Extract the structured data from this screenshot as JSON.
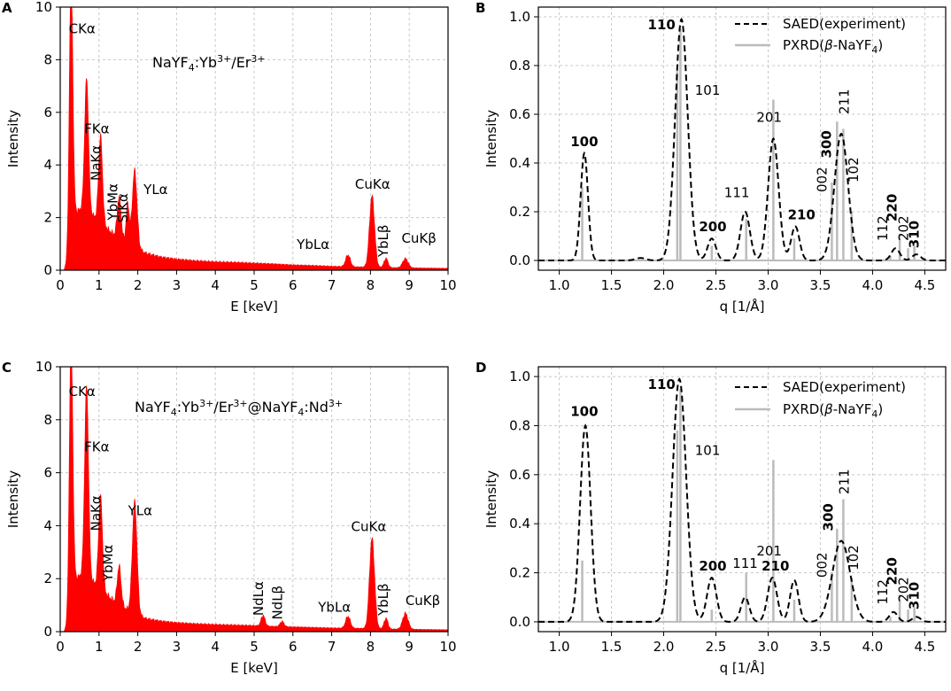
{
  "colors": {
    "eds_fill": "#ff0000",
    "saed_line": "#000000",
    "pxrd_line": "#bbbbbb",
    "grid": "#c8c8c8",
    "axis": "#000000"
  },
  "chart_data": [
    {
      "id": "A",
      "type": "area",
      "panel_label": "A",
      "title": "NaYF4:Yb3+/Er3+",
      "title_parts": {
        "p1": "NaYF",
        "s1": "4",
        "p2": ":Yb",
        "s2": "3+",
        "p3": "/Er",
        "s3": "3+"
      },
      "xlabel": "E [keV]",
      "ylabel": "Intensity",
      "xlim": [
        0,
        10
      ],
      "ylim": [
        0,
        10
      ],
      "xticks": [
        0,
        1,
        2,
        3,
        4,
        5,
        6,
        7,
        8,
        9,
        10
      ],
      "yticks": [
        0,
        2,
        4,
        6,
        8,
        10
      ],
      "grid": true,
      "baseline": {
        "x": [
          0.1,
          0.2,
          0.25,
          0.4,
          0.6,
          0.9,
          1.2,
          1.5,
          1.8,
          2.2,
          2.6,
          3.0,
          3.5,
          4.0,
          4.5,
          5.0,
          5.5,
          6.0,
          6.5,
          7.0,
          7.5,
          8.0,
          8.5,
          9.0,
          9.5,
          10.0
        ],
        "y": [
          0,
          0.5,
          1.4,
          2.2,
          2.4,
          2.0,
          1.6,
          1.2,
          1.0,
          0.65,
          0.5,
          0.42,
          0.36,
          0.32,
          0.3,
          0.27,
          0.24,
          0.2,
          0.18,
          0.15,
          0.13,
          0.12,
          0.1,
          0.09,
          0.08,
          0.07
        ]
      },
      "peaks": [
        {
          "label": "CKα",
          "x": 0.28,
          "y": 9.8,
          "w": 0.045
        },
        {
          "label": "FKα",
          "x": 0.68,
          "y": 5.0,
          "w": 0.05
        },
        {
          "label": "NaKα",
          "x": 1.04,
          "y": 3.3,
          "w": 0.05
        },
        {
          "label": "YbMα",
          "x": 1.52,
          "y": 1.6,
          "w": 0.05
        },
        {
          "label": "SiKα",
          "x": 1.74,
          "y": 1.5,
          "w": 0.04
        },
        {
          "label": "YLα",
          "x": 1.92,
          "y": 2.9,
          "w": 0.06
        },
        {
          "label": "YbLα",
          "x": 7.42,
          "y": 0.45,
          "w": 0.06
        },
        {
          "label": "CuKα",
          "x": 8.04,
          "y": 2.7,
          "w": 0.065
        },
        {
          "label": "YbLβ",
          "x": 8.4,
          "y": 0.35,
          "w": 0.05
        },
        {
          "label": "CuKβ",
          "x": 8.9,
          "y": 0.35,
          "w": 0.07
        }
      ]
    },
    {
      "id": "B",
      "type": "line",
      "panel_label": "B",
      "xlabel": "q [1/Å]",
      "ylabel": "Intensity",
      "xlim": [
        0.8,
        4.7
      ],
      "ylim": [
        -0.04,
        1.04
      ],
      "xticks": [
        1.0,
        1.5,
        2.0,
        2.5,
        3.0,
        3.5,
        4.0,
        4.5
      ],
      "yticks": [
        0.0,
        0.2,
        0.4,
        0.6,
        0.8,
        1.0
      ],
      "grid": true,
      "legend": {
        "position": "top-right",
        "saed_parts": {
          "text": "SAED(experiment)"
        },
        "pxrd_parts": {
          "p1": "PXRD(",
          "beta": "β",
          "p2": "-NaYF",
          "s1": "4",
          "p3": ")"
        }
      },
      "series": [
        {
          "name": "SAED(experiment)",
          "kind": "gaussian-sum",
          "peaks": [
            {
              "x": 1.24,
              "y": 0.44,
              "w": 0.035
            },
            {
              "x": 1.78,
              "y": 0.01,
              "w": 0.05
            },
            {
              "x": 2.17,
              "y": 0.99,
              "w": 0.06
            },
            {
              "x": 2.46,
              "y": 0.09,
              "w": 0.04
            },
            {
              "x": 2.78,
              "y": 0.2,
              "w": 0.045
            },
            {
              "x": 3.05,
              "y": 0.5,
              "w": 0.05
            },
            {
              "x": 3.26,
              "y": 0.14,
              "w": 0.04
            },
            {
              "x": 3.7,
              "y": 0.52,
              "w": 0.065
            },
            {
              "x": 4.22,
              "y": 0.05,
              "w": 0.04
            },
            {
              "x": 4.42,
              "y": 0.025,
              "w": 0.04
            }
          ]
        },
        {
          "name": "PXRD(β-NaYF4)",
          "kind": "sticks",
          "x": [
            1.22,
            2.13,
            2.16,
            2.46,
            2.79,
            3.05,
            3.25,
            3.61,
            3.66,
            3.72,
            3.8,
            4.17,
            4.26,
            4.34,
            4.4
          ],
          "y": [
            0.3,
            0.78,
            0.95,
            0.06,
            0.17,
            0.66,
            0.09,
            0.32,
            0.57,
            0.54,
            0.2,
            0.02,
            0.11,
            0.05,
            0.06
          ]
        }
      ],
      "annotations": [
        {
          "text": "100",
          "x": 1.24,
          "y": 0.47,
          "bold": true,
          "rotate": false
        },
        {
          "text": "110",
          "x": 1.98,
          "y": 0.95,
          "bold": true,
          "rotate": false
        },
        {
          "text": "101",
          "x": 2.42,
          "y": 0.68,
          "bold": false,
          "rotate": false
        },
        {
          "text": "200",
          "x": 2.47,
          "y": 0.12,
          "bold": true,
          "rotate": false
        },
        {
          "text": "111",
          "x": 2.7,
          "y": 0.26,
          "bold": false,
          "rotate": false
        },
        {
          "text": "201",
          "x": 3.01,
          "y": 0.57,
          "bold": false,
          "rotate": false
        },
        {
          "text": "210",
          "x": 3.32,
          "y": 0.17,
          "bold": true,
          "rotate": false
        },
        {
          "text": "002",
          "x": 3.56,
          "y": 0.28,
          "bold": false,
          "rotate": true
        },
        {
          "text": "300",
          "x": 3.6,
          "y": 0.42,
          "bold": true,
          "rotate": true
        },
        {
          "text": "211",
          "x": 3.77,
          "y": 0.6,
          "bold": false,
          "rotate": true
        },
        {
          "text": "102",
          "x": 3.86,
          "y": 0.32,
          "bold": false,
          "rotate": true
        },
        {
          "text": "112",
          "x": 4.14,
          "y": 0.08,
          "bold": false,
          "rotate": true
        },
        {
          "text": "220",
          "x": 4.23,
          "y": 0.16,
          "bold": true,
          "rotate": true
        },
        {
          "text": "202",
          "x": 4.34,
          "y": 0.08,
          "bold": false,
          "rotate": true
        },
        {
          "text": "310",
          "x": 4.44,
          "y": 0.05,
          "bold": true,
          "rotate": true
        }
      ]
    },
    {
      "id": "C",
      "type": "area",
      "panel_label": "C",
      "title": "NaYF4:Yb3+/Er3+@NaYF4:Nd3+",
      "title_parts": {
        "p1": "NaYF",
        "s1": "4",
        "p2": ":Yb",
        "s2": "3+",
        "p3": "/Er",
        "s3": "3+",
        "p4": "@NaYF",
        "s4": "4",
        "p5": ":Nd",
        "s5": "3+"
      },
      "xlabel": "E [keV]",
      "ylabel": "Intensity",
      "xlim": [
        0,
        10
      ],
      "ylim": [
        0,
        10
      ],
      "xticks": [
        0,
        1,
        2,
        3,
        4,
        5,
        6,
        7,
        8,
        9,
        10
      ],
      "yticks": [
        0,
        2,
        4,
        6,
        8,
        10
      ],
      "grid": true,
      "baseline": {
        "x": [
          0.1,
          0.2,
          0.25,
          0.4,
          0.6,
          0.9,
          1.2,
          1.5,
          1.8,
          2.2,
          2.6,
          3.0,
          3.5,
          4.0,
          4.5,
          5.0,
          5.5,
          6.0,
          6.5,
          7.0,
          7.5,
          8.0,
          8.5,
          9.0,
          9.5,
          10.0
        ],
        "y": [
          0,
          0.4,
          1.2,
          2.0,
          2.2,
          1.8,
          1.4,
          1.0,
          0.8,
          0.5,
          0.4,
          0.34,
          0.3,
          0.27,
          0.25,
          0.23,
          0.2,
          0.18,
          0.16,
          0.14,
          0.13,
          0.12,
          0.1,
          0.09,
          0.08,
          0.07
        ]
      },
      "peaks": [
        {
          "label": "CKα",
          "x": 0.28,
          "y": 9.7,
          "w": 0.045
        },
        {
          "label": "FKα",
          "x": 0.68,
          "y": 7.2,
          "w": 0.05
        },
        {
          "label": "NaKα",
          "x": 1.04,
          "y": 3.5,
          "w": 0.05
        },
        {
          "label": "YbMα",
          "x": 1.52,
          "y": 1.5,
          "w": 0.05
        },
        {
          "label": "YLα",
          "x": 1.92,
          "y": 4.2,
          "w": 0.06
        },
        {
          "label": "NdLα",
          "x": 5.23,
          "y": 0.4,
          "w": 0.05
        },
        {
          "label": "NdLβ",
          "x": 5.72,
          "y": 0.2,
          "w": 0.05
        },
        {
          "label": "YbLα",
          "x": 7.42,
          "y": 0.45,
          "w": 0.06
        },
        {
          "label": "CuKα",
          "x": 8.04,
          "y": 3.4,
          "w": 0.065
        },
        {
          "label": "YbLβ",
          "x": 8.4,
          "y": 0.4,
          "w": 0.05
        },
        {
          "label": "CuKβ",
          "x": 8.9,
          "y": 0.6,
          "w": 0.07
        }
      ]
    },
    {
      "id": "D",
      "type": "line",
      "panel_label": "D",
      "xlabel": "q [1/Å]",
      "ylabel": "Intensity",
      "xlim": [
        0.8,
        4.7
      ],
      "ylim": [
        -0.04,
        1.04
      ],
      "xticks": [
        1.0,
        1.5,
        2.0,
        2.5,
        3.0,
        3.5,
        4.0,
        4.5
      ],
      "yticks": [
        0.0,
        0.2,
        0.4,
        0.6,
        0.8,
        1.0
      ],
      "grid": true,
      "legend": {
        "position": "top-right",
        "saed_parts": {
          "text": "SAED(experiment)"
        },
        "pxrd_parts": {
          "p1": "PXRD(",
          "beta": "β",
          "p2": "-NaYF",
          "s1": "4",
          "p3": ")"
        }
      },
      "series": [
        {
          "name": "SAED(experiment)",
          "kind": "gaussian-sum",
          "peaks": [
            {
              "x": 1.25,
              "y": 0.8,
              "w": 0.05
            },
            {
              "x": 2.15,
              "y": 0.99,
              "w": 0.065
            },
            {
              "x": 2.46,
              "y": 0.18,
              "w": 0.045
            },
            {
              "x": 2.78,
              "y": 0.1,
              "w": 0.04
            },
            {
              "x": 3.04,
              "y": 0.18,
              "w": 0.045
            },
            {
              "x": 3.25,
              "y": 0.17,
              "w": 0.04
            },
            {
              "x": 3.7,
              "y": 0.33,
              "w": 0.085
            },
            {
              "x": 4.2,
              "y": 0.04,
              "w": 0.04
            },
            {
              "x": 4.42,
              "y": 0.02,
              "w": 0.04
            }
          ]
        },
        {
          "name": "PXRD(β-NaYF4)",
          "kind": "sticks",
          "x": [
            1.22,
            2.13,
            2.16,
            2.46,
            2.79,
            3.05,
            3.25,
            3.61,
            3.66,
            3.72,
            3.8,
            4.17,
            4.26,
            4.34,
            4.4
          ],
          "y": [
            0.25,
            0.78,
            0.95,
            0.05,
            0.2,
            0.66,
            0.09,
            0.2,
            0.38,
            0.5,
            0.18,
            0.02,
            0.11,
            0.05,
            0.06
          ]
        }
      ],
      "annotations": [
        {
          "text": "100",
          "x": 1.24,
          "y": 0.84,
          "bold": true,
          "rotate": false
        },
        {
          "text": "110",
          "x": 1.98,
          "y": 0.95,
          "bold": true,
          "rotate": false
        },
        {
          "text": "101",
          "x": 2.42,
          "y": 0.68,
          "bold": false,
          "rotate": false
        },
        {
          "text": "200",
          "x": 2.47,
          "y": 0.21,
          "bold": true,
          "rotate": false
        },
        {
          "text": "111",
          "x": 2.78,
          "y": 0.22,
          "bold": false,
          "rotate": false
        },
        {
          "text": "201",
          "x": 3.01,
          "y": 0.27,
          "bold": false,
          "rotate": false
        },
        {
          "text": "210",
          "x": 3.07,
          "y": 0.21,
          "bold": true,
          "rotate": false
        },
        {
          "text": "002",
          "x": 3.56,
          "y": 0.18,
          "bold": false,
          "rotate": true
        },
        {
          "text": "300",
          "x": 3.62,
          "y": 0.37,
          "bold": true,
          "rotate": true
        },
        {
          "text": "211",
          "x": 3.77,
          "y": 0.52,
          "bold": false,
          "rotate": true
        },
        {
          "text": "102",
          "x": 3.86,
          "y": 0.21,
          "bold": false,
          "rotate": true
        },
        {
          "text": "112",
          "x": 4.14,
          "y": 0.07,
          "bold": false,
          "rotate": true
        },
        {
          "text": "220",
          "x": 4.23,
          "y": 0.15,
          "bold": true,
          "rotate": true
        },
        {
          "text": "202",
          "x": 4.34,
          "y": 0.08,
          "bold": false,
          "rotate": true
        },
        {
          "text": "310",
          "x": 4.44,
          "y": 0.05,
          "bold": true,
          "rotate": true
        }
      ]
    }
  ]
}
